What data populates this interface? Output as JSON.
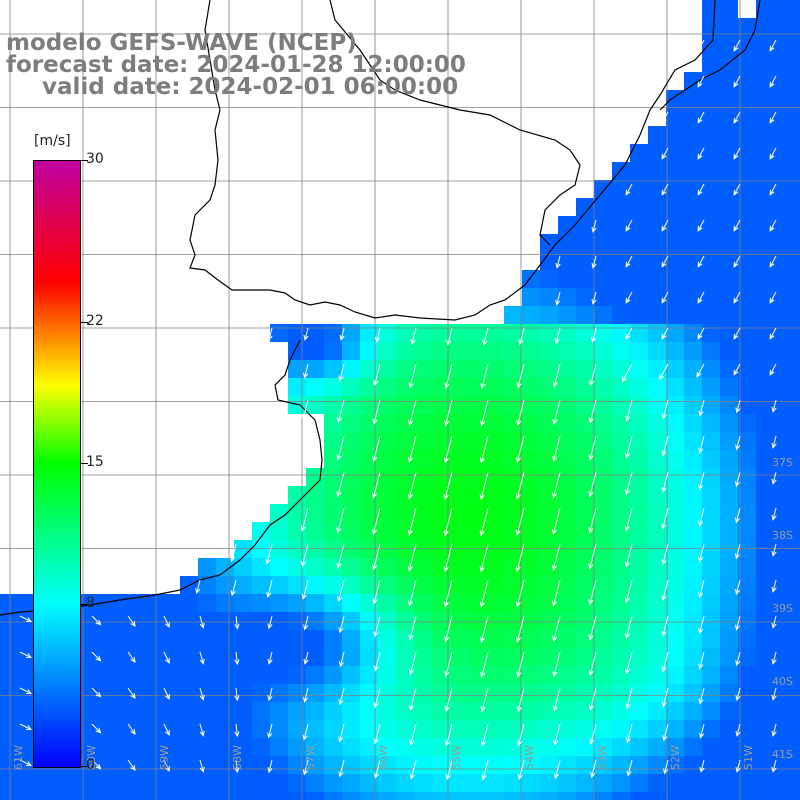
{
  "titles": {
    "line1": "modelo GEFS-WAVE (NCEP)",
    "line2": "forecast date: 2024-01-28 12:00:00",
    "line3": "valid date: 2024-02-01 06:00:00"
  },
  "colorbar": {
    "unit": "[m/s]",
    "min": 0,
    "max": 30,
    "ticks": [
      "0",
      "8",
      "15",
      "22",
      "30"
    ],
    "colors": [
      "#0000ff",
      "#00ffff",
      "#00ff00",
      "#ffff00",
      "#ff0000",
      "#c000a0"
    ]
  },
  "map": {
    "lat_labels": [
      "37S",
      "38S",
      "39S",
      "40S",
      "41S"
    ],
    "lon_labels": [
      "61W",
      "60W",
      "59W",
      "58W",
      "57W",
      "56W",
      "55W",
      "54W",
      "53W",
      "52W",
      "51W"
    ],
    "wind_direction": "southward",
    "colors": {
      "coastline": "#000000",
      "grid": "#808080",
      "arrows": "#ffffff",
      "land": "#ffffff"
    }
  }
}
